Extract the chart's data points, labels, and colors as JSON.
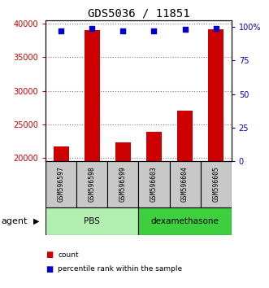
{
  "title": "GDS5036 / 11851",
  "samples": [
    "GSM596597",
    "GSM596598",
    "GSM596599",
    "GSM596603",
    "GSM596604",
    "GSM596605"
  ],
  "counts": [
    21700,
    39000,
    22300,
    23900,
    27000,
    39200
  ],
  "percentiles": [
    97,
    99,
    97,
    97,
    98,
    99
  ],
  "groups": [
    "PBS",
    "PBS",
    "PBS",
    "dexamethasone",
    "dexamethasone",
    "dexamethasone"
  ],
  "group_labels": [
    "PBS",
    "dexamethasone"
  ],
  "group_colors_light": "#b2f0b2",
  "group_colors_dark": "#3ecf3e",
  "bar_color": "#cc0000",
  "dot_color": "#0000cc",
  "ylim_left": [
    19500,
    40500
  ],
  "ylim_right": [
    0,
    105
  ],
  "yticks_left": [
    20000,
    25000,
    30000,
    35000,
    40000
  ],
  "yticks_right": [
    0,
    25,
    50,
    75,
    100
  ],
  "ylabel_left_color": "#cc0000",
  "ylabel_right_color": "#0000cc",
  "background_color": "#ffffff",
  "bar_width": 0.5,
  "sample_label_bg": "#c8c8c8",
  "agent_label": "agent"
}
